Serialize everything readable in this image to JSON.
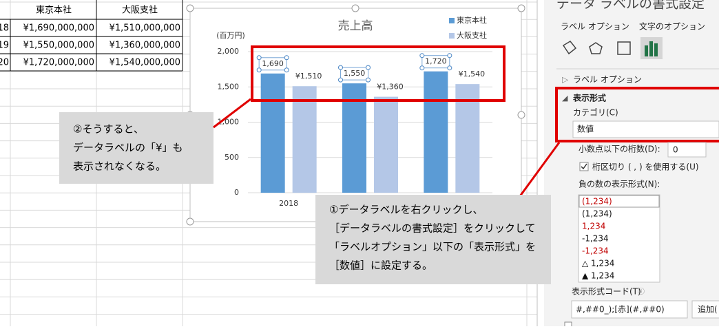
{
  "sheet": {
    "headers": [
      "東京本社",
      "大阪支社"
    ],
    "rows": [
      [
        "18",
        "¥1,690,000,000",
        "¥1,510,000,000"
      ],
      [
        "19",
        "¥1,550,000,000",
        "¥1,360,000,000"
      ],
      [
        "20",
        "¥1,720,000,000",
        "¥1,540,000,000"
      ]
    ]
  },
  "chart_data": {
    "type": "bar",
    "title": "売上高",
    "y_label": "(百万円)",
    "categories": [
      "2018",
      null,
      null
    ],
    "series": [
      {
        "name": "東京本社",
        "color": "#5b9bd5",
        "values": [
          1690,
          1550,
          1720
        ],
        "value_labels": [
          "1,690",
          "1,550",
          "1,720"
        ]
      },
      {
        "name": "大阪支社",
        "color": "#b4c7e7",
        "values": [
          1510,
          1360,
          1540
        ],
        "value_labels": [
          "¥1,510",
          "¥1,360",
          "¥1,540"
        ]
      }
    ],
    "ylim": [
      0,
      2000
    ],
    "yticks": [
      0,
      500,
      {
        "value": 1000,
        "label": "1,000"
      },
      {
        "value": 1500,
        "label": "1,500"
      },
      {
        "value": 2000,
        "label": "2,000"
      }
    ],
    "grid": true
  },
  "callouts": {
    "left": [
      "②そうすると、",
      "データラベルの「¥」も",
      "表示されなくなる。"
    ],
    "right": [
      "①データラベルを右クリックし、",
      "［データラベルの書式設定］をクリックして",
      "「ラベルオプション」以下の「表示形式」を",
      "［数値］に設定する。"
    ]
  },
  "panel": {
    "title": "データ ラベルの書式設定",
    "tabs": [
      "ラベル オプション",
      "文字のオプション"
    ],
    "section_collapsed": "ラベル オプション",
    "section_open": "表示形式",
    "category_label": "カテゴリ(C)",
    "category_value": "数値",
    "decimals_label": "小数点以下の桁数(D):",
    "decimals_value": "0",
    "separator_label": "桁区切り ( , ) を使用する(U)",
    "negative_label": "負の数の表示形式(N):",
    "negative_formats": [
      "(1,234)",
      "(1,234)",
      "1,234",
      "-1,234",
      "-1,234",
      "△ 1,234",
      "▲ 1,234"
    ],
    "code_label": "表示形式コード(T)",
    "code_value": "#,##0_);[赤](#,##0)",
    "add_button": "追加("
  }
}
